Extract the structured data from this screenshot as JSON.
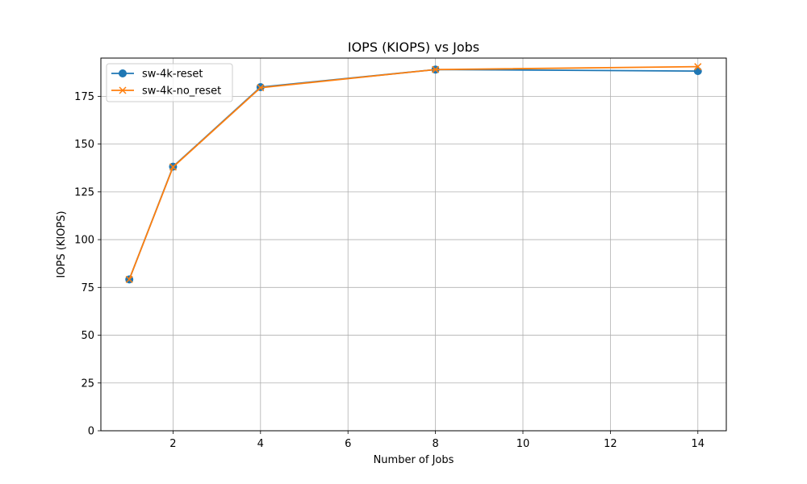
{
  "chart_data": {
    "type": "line",
    "title": "IOPS (KIOPS) vs Jobs",
    "xlabel": "Number of Jobs",
    "ylabel": "IOPS (KIOPS)",
    "x": [
      1,
      2,
      4,
      8,
      14
    ],
    "xlim": [
      0.35,
      14.65
    ],
    "ylim": [
      0,
      195
    ],
    "xticks": [
      2,
      4,
      6,
      8,
      10,
      12,
      14
    ],
    "yticks": [
      0,
      25,
      50,
      75,
      100,
      125,
      150,
      175
    ],
    "grid": true,
    "legend_position": "upper left",
    "series": [
      {
        "name": "sw-4k-reset",
        "marker": "circle",
        "color": "#1f77b4",
        "values": [
          79.2,
          138.2,
          179.8,
          189.0,
          188.2
        ]
      },
      {
        "name": "sw-4k-no_reset",
        "marker": "x",
        "color": "#ff7f0e",
        "values": [
          79.2,
          138.0,
          179.5,
          189.0,
          190.5
        ]
      }
    ]
  }
}
